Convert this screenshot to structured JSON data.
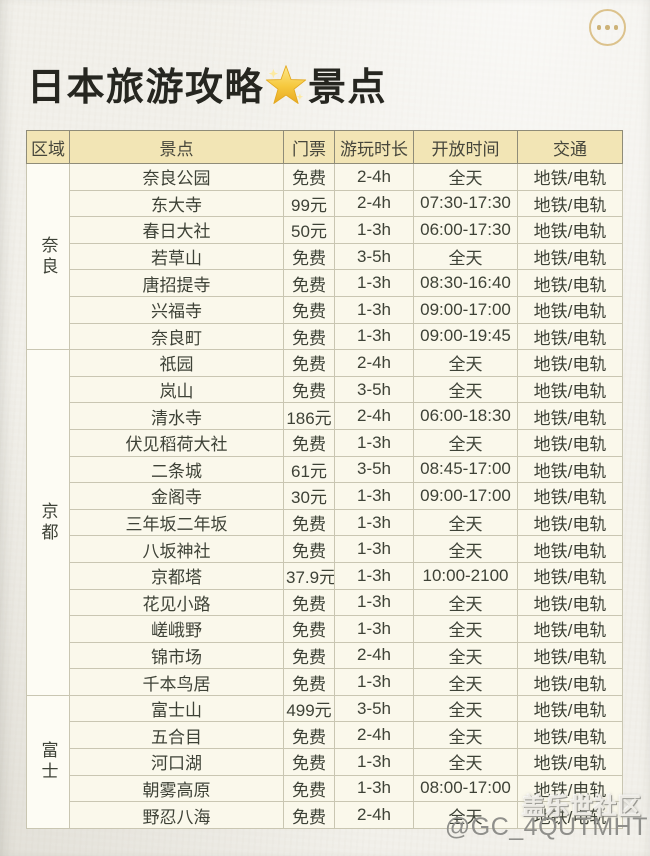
{
  "header": {
    "title_part1": "日本旅游攻略",
    "title_part2": "景点",
    "star_emoji": "🌟"
  },
  "toolbar": {
    "more_icon": "more-options"
  },
  "table": {
    "columns": [
      "区域",
      "景点",
      "门票",
      "游玩时长",
      "开放时间",
      "交通"
    ],
    "sections": [
      {
        "region": "奈良",
        "rows": [
          [
            "奈良公园",
            "免费",
            "2-4h",
            "全天",
            "地铁/电轨"
          ],
          [
            "东大寺",
            "99元",
            "2-4h",
            "07:30-17:30",
            "地铁/电轨"
          ],
          [
            "春日大社",
            "50元",
            "1-3h",
            "06:00-17:30",
            "地铁/电轨"
          ],
          [
            "若草山",
            "免费",
            "3-5h",
            "全天",
            "地铁/电轨"
          ],
          [
            "唐招提寺",
            "免费",
            "1-3h",
            "08:30-16:40",
            "地铁/电轨"
          ],
          [
            "兴福寺",
            "免费",
            "1-3h",
            "09:00-17:00",
            "地铁/电轨"
          ],
          [
            "奈良町",
            "免费",
            "1-3h",
            "09:00-19:45",
            "地铁/电轨"
          ]
        ]
      },
      {
        "region": "京都",
        "rows": [
          [
            "祇园",
            "免费",
            "2-4h",
            "全天",
            "地铁/电轨"
          ],
          [
            "岚山",
            "免费",
            "3-5h",
            "全天",
            "地铁/电轨"
          ],
          [
            "清水寺",
            "186元",
            "2-4h",
            "06:00-18:30",
            "地铁/电轨"
          ],
          [
            "伏见稻荷大社",
            "免费",
            "1-3h",
            "全天",
            "地铁/电轨"
          ],
          [
            "二条城",
            "61元",
            "3-5h",
            "08:45-17:00",
            "地铁/电轨"
          ],
          [
            "金阁寺",
            "30元",
            "1-3h",
            "09:00-17:00",
            "地铁/电轨"
          ],
          [
            "三年坂二年坂",
            "免费",
            "1-3h",
            "全天",
            "地铁/电轨"
          ],
          [
            "八坂神社",
            "免费",
            "1-3h",
            "全天",
            "地铁/电轨"
          ],
          [
            "京都塔",
            "37.9元",
            "1-3h",
            "10:00-2100",
            "地铁/电轨"
          ],
          [
            "花见小路",
            "免费",
            "1-3h",
            "全天",
            "地铁/电轨"
          ],
          [
            "嵯峨野",
            "免费",
            "1-3h",
            "全天",
            "地铁/电轨"
          ],
          [
            "锦市场",
            "免费",
            "2-4h",
            "全天",
            "地铁/电轨"
          ],
          [
            "千本鸟居",
            "免费",
            "1-3h",
            "全天",
            "地铁/电轨"
          ]
        ]
      },
      {
        "region": "富士",
        "rows": [
          [
            "富士山",
            "499元",
            "3-5h",
            "全天",
            "地铁/电轨"
          ],
          [
            "五合目",
            "免费",
            "2-4h",
            "全天",
            "地铁/电轨"
          ],
          [
            "河口湖",
            "免费",
            "1-3h",
            "全天",
            "地铁/电轨"
          ],
          [
            "朝雾高原",
            "免费",
            "1-3h",
            "08:00-17:00",
            "地铁/电轨"
          ],
          [
            "野忍八海",
            "免费",
            "2-4h",
            "全天",
            "地铁/电轨"
          ]
        ]
      }
    ],
    "cell_field_names": [
      "attraction-name",
      "ticket-price",
      "visit-duration",
      "opening-hours",
      "transport"
    ]
  },
  "watermark": {
    "community": "盖乐世社区",
    "handle": "@GC_4QUTMHT"
  },
  "colors": {
    "paper_bg": "#f1efe9",
    "header_bg": "#f2e5b5",
    "row_bg": "#faf8eb",
    "region_bg": "#fdfcf4",
    "frame_border": "#8f8c78",
    "cell_border": "#c9c6b2",
    "accent_gold": "#dcc28c",
    "text": "#3e4237",
    "star_gold": "#f6c83d"
  }
}
